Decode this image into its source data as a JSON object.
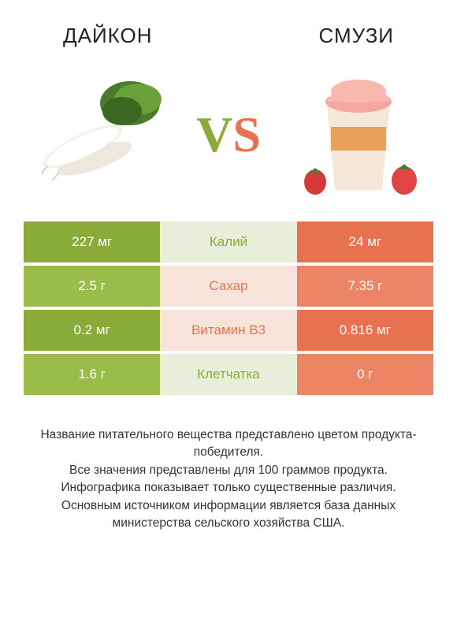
{
  "titles": {
    "left": "ДАЙКОН",
    "right": "СМУЗИ"
  },
  "vs": {
    "v": "V",
    "s": "S"
  },
  "colors": {
    "left_primary": "#8aab3a",
    "left_alt": "#9bbb4a",
    "right_primary": "#e8724f",
    "right_alt": "#ec8565",
    "mid_bg_left": "#e8eed9",
    "mid_bg_right": "#f8e3db",
    "mid_text_left": "#8aab3a",
    "mid_text_right": "#e8724f",
    "title_color": "#222222",
    "footer_color": "#333333",
    "background": "#ffffff"
  },
  "rows": [
    {
      "left": "227 мг",
      "mid": "Калий",
      "right": "24 мг",
      "winner": "left"
    },
    {
      "left": "2.5 г",
      "mid": "Сахар",
      "right": "7.35 г",
      "winner": "right"
    },
    {
      "left": "0.2 мг",
      "mid": "Витамин B3",
      "right": "0.816 мг",
      "winner": "right"
    },
    {
      "left": "1.6 г",
      "mid": "Клетчатка",
      "right": "0 г",
      "winner": "left"
    }
  ],
  "footer_lines": [
    "Название питательного вещества представлено цветом продукта-победителя.",
    "Все значения представлены для 100 граммов продукта.",
    "Инфографика показывает только существенные различия.",
    "Основным источником информации является база данных министерства сельского хозяйства США."
  ],
  "typography": {
    "title_fontsize": 26,
    "vs_fontsize": 64,
    "cell_fontsize": 17,
    "footer_fontsize": 15.5
  }
}
